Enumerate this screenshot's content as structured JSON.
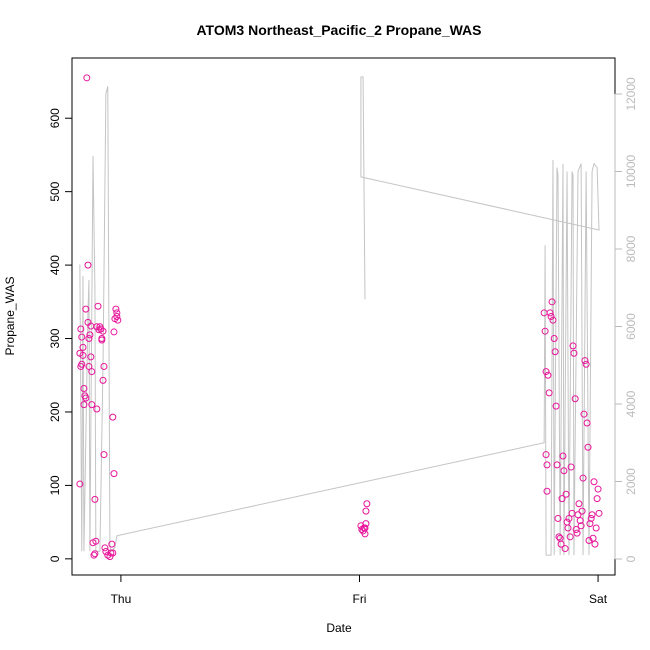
{
  "chart_data": {
    "type": "scatter",
    "title": "ATOM3 Northeast_Pacific_2 Propane_WAS",
    "xlabel": "Date",
    "ylabel": "Propane_WAS",
    "xlim": [
      -0.205,
      2.071
    ],
    "ylim": [
      -22,
      682
    ],
    "y2lim": [
      -413,
      12929
    ],
    "xticks": [
      {
        "value": 0,
        "label": "Thu"
      },
      {
        "value": 1,
        "label": "Fri"
      },
      {
        "value": 2,
        "label": "Sat"
      }
    ],
    "yticks": [
      0,
      100,
      200,
      300,
      400,
      500,
      600
    ],
    "y2ticks": [
      0,
      2000,
      4000,
      6000,
      8000,
      10000,
      12000
    ],
    "series": [
      {
        "type": "scatter",
        "color": "#e8149a",
        "x": [
          -0.172,
          -0.172,
          -0.168,
          -0.168,
          -0.164,
          -0.164,
          -0.159,
          -0.159,
          -0.155,
          -0.155,
          -0.151,
          -0.147,
          -0.147,
          -0.143,
          -0.138,
          -0.138,
          -0.134,
          -0.134,
          -0.13,
          -0.126,
          -0.126,
          -0.122,
          -0.122,
          -0.117,
          -0.113,
          -0.109,
          -0.109,
          -0.105,
          -0.101,
          -0.101,
          -0.096,
          -0.092,
          -0.088,
          -0.084,
          -0.08,
          -0.08,
          -0.075,
          -0.075,
          -0.071,
          -0.071,
          -0.067,
          -0.063,
          -0.055,
          -0.046,
          -0.042,
          -0.038,
          -0.034,
          -0.034,
          -0.029,
          -0.029,
          -0.025,
          -0.021,
          -0.017,
          -0.017,
          -0.013,
          1.006,
          1.01,
          1.015,
          1.019,
          1.023,
          1.027,
          1.027,
          1.031,
          1.023,
          1.774,
          1.778,
          1.782,
          1.782,
          1.786,
          1.786,
          1.79,
          1.795,
          1.799,
          1.803,
          1.807,
          1.811,
          1.816,
          1.82,
          1.824,
          1.828,
          1.832,
          1.836,
          1.841,
          1.845,
          1.849,
          1.853,
          1.857,
          1.862,
          1.866,
          1.87,
          1.874,
          1.878,
          1.883,
          1.887,
          1.891,
          1.895,
          1.899,
          1.904,
          1.908,
          1.912,
          1.916,
          1.92,
          1.925,
          1.929,
          1.933,
          1.937,
          1.941,
          1.945,
          1.95,
          1.954,
          1.958,
          1.962,
          1.966,
          1.971,
          1.975,
          1.979,
          1.983,
          1.987,
          1.992,
          1.996,
          2.0,
          2.004
        ],
        "values": [
          102,
          280,
          313,
          262,
          302,
          265,
          288,
          277,
          210,
          232,
          222,
          219,
          340,
          655,
          400,
          322,
          262,
          300,
          305,
          317,
          275,
          210,
          255,
          22,
          5,
          7,
          81,
          24,
          204,
          316,
          344,
          312,
          316,
          313,
          300,
          298,
          310,
          243,
          262,
          142,
          15,
          10,
          5,
          3,
          8,
          20,
          8,
          193,
          116,
          309,
          327,
          340,
          335,
          330,
          325,
          45,
          40,
          38,
          42,
          34,
          48,
          65,
          75,
          42,
          335,
          310,
          255,
          142,
          92,
          128,
          250,
          226,
          335,
          330,
          350,
          325,
          300,
          282,
          208,
          128,
          55,
          30,
          28,
          20,
          82,
          140,
          120,
          14,
          88,
          50,
          42,
          55,
          30,
          125,
          62,
          290,
          280,
          218,
          40,
          35,
          60,
          75,
          52,
          45,
          65,
          110,
          197,
          270,
          265,
          185,
          152,
          25,
          48,
          55,
          60,
          28,
          105,
          20,
          42,
          82,
          95,
          62
        ]
      },
      {
        "type": "line",
        "axis": "y2",
        "color": "#c4c4c4",
        "x": [
          -0.172,
          -0.164,
          -0.159,
          -0.155,
          -0.138,
          -0.134,
          -0.13,
          -0.117,
          -0.109,
          -0.105,
          -0.088,
          -0.075,
          -0.063,
          -0.055,
          -0.046,
          -0.038,
          -0.025,
          -0.017,
          1.774,
          1.778,
          1.782,
          1.803,
          1.811,
          1.816,
          1.828,
          1.832,
          1.841,
          1.853,
          1.857,
          1.87,
          1.878,
          1.891,
          1.895,
          1.899,
          1.916,
          1.929,
          1.937,
          1.95,
          1.962,
          1.975,
          1.983,
          1.996,
          2.004,
          1.006,
          1.006,
          1.015,
          1.023
        ],
        "values": [
          7600,
          200,
          7300,
          200,
          6400,
          7200,
          200,
          10400,
          7000,
          200,
          200,
          5000,
          12000,
          12200,
          300,
          200,
          300,
          600,
          3000,
          8100,
          100,
          100,
          10300,
          100,
          10100,
          9900,
          100,
          10200,
          100,
          10000,
          100,
          10000,
          9900,
          100,
          10000,
          10200,
          100,
          10000,
          100,
          10000,
          10200,
          10100,
          8490,
          9860,
          12440,
          12440,
          6700
        ]
      }
    ]
  }
}
